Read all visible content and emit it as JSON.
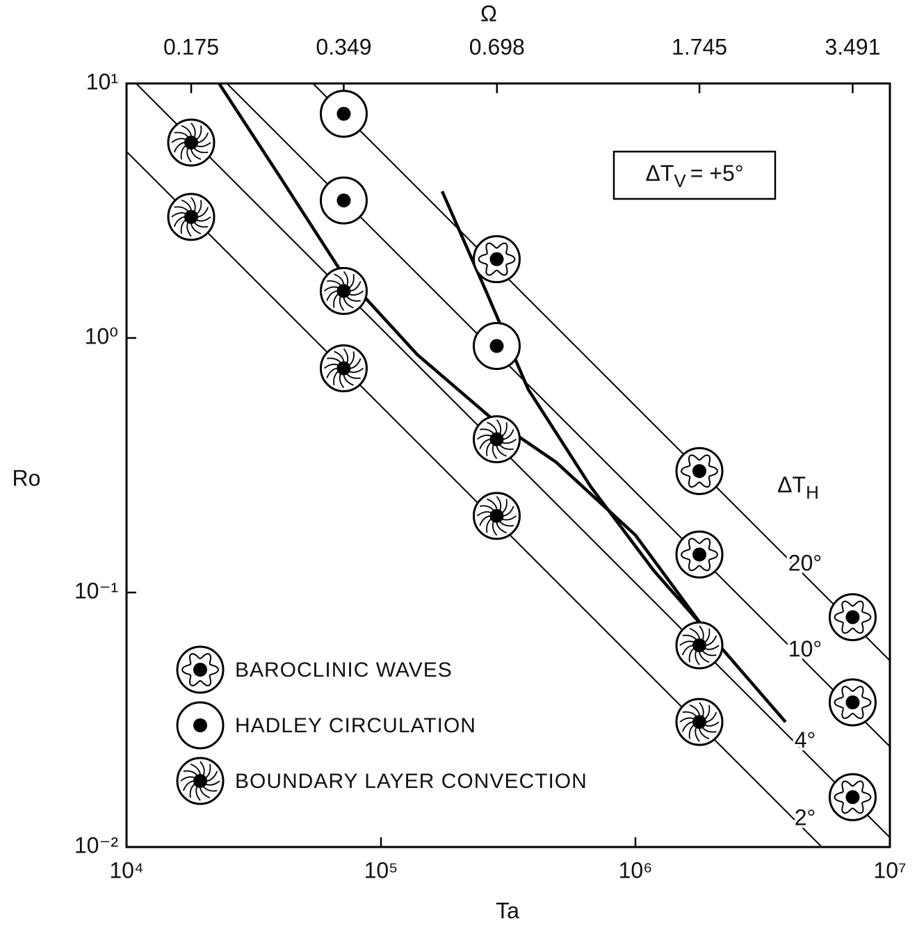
{
  "chart_data": {
    "type": "scatter",
    "x_label": "Ta",
    "y_label": "Ro",
    "x2_label": "Ω",
    "xscale": "log",
    "yscale": "log",
    "x2scale": "log",
    "xlim": [
      10000,
      10000000
    ],
    "ylim": [
      0.01,
      10
    ],
    "x2lim": [
      0.1306,
      4.131
    ],
    "xticks": [
      {
        "value": 10000,
        "label": "10⁴"
      },
      {
        "value": 100000,
        "label": "10⁵"
      },
      {
        "value": 1000000,
        "label": "10⁶"
      },
      {
        "value": 10000000,
        "label": "10⁷"
      }
    ],
    "yticks": [
      {
        "value": 0.01,
        "label": "10⁻²"
      },
      {
        "value": 0.1,
        "label": "10⁻¹"
      },
      {
        "value": 1,
        "label": "10⁰"
      },
      {
        "value": 10,
        "label": "10¹"
      }
    ],
    "x2ticks": [
      0.175,
      0.349,
      0.698,
      1.745,
      3.491
    ],
    "annotation": {
      "base": "ΔT",
      "subscript": "V",
      "text": "= +5°"
    },
    "lines_title": {
      "base": "ΔT",
      "subscript": "H"
    },
    "series": [
      {
        "name": "BAROCLINIC WAVES",
        "marker": "wave",
        "color": "#000000",
        "x": [
          285000,
          1784000,
          1784000,
          7140000,
          7140000,
          7140000
        ],
        "values": [
          2.04,
          0.3,
          0.141,
          0.08,
          0.037,
          0.0157
        ]
      },
      {
        "name": "HADLEY CIRCULATION",
        "marker": "dot",
        "color": "#000000",
        "x": [
          71400,
          71400,
          285000
        ],
        "values": [
          7.6,
          3.47,
          0.93
        ]
      },
      {
        "name": "BOUNDARY LAYER CONVECTION",
        "marker": "swirl",
        "color": "#000000",
        "x": [
          17950,
          17950,
          71400,
          71400,
          285000,
          285000,
          1784000,
          1784000
        ],
        "values": [
          5.86,
          2.99,
          1.53,
          0.76,
          0.4,
          0.2,
          0.062,
          0.031
        ]
      }
    ],
    "lines": [
      {
        "name": "20°",
        "color": "#000000",
        "x": [
          54000,
          10000000
        ],
        "values": [
          10,
          0.054
        ]
      },
      {
        "name": "10°",
        "color": "#000000",
        "x": [
          24800,
          10000000
        ],
        "values": [
          10,
          0.0248
        ]
      },
      {
        "name": "4°",
        "color": "#000000",
        "x": [
          10900,
          10000000
        ],
        "values": [
          10,
          0.0109
        ]
      },
      {
        "name": "2°",
        "color": "#000000",
        "x": [
          10000,
          5400000
        ],
        "values": [
          5.4,
          0.01
        ]
      }
    ],
    "boundaries": [
      {
        "color": "#000000",
        "x": [
          23100,
          39400,
          69500,
          139000,
          268000,
          488000,
          1000000,
          1830000,
          3890000
        ],
        "values": [
          10,
          4.41,
          1.83,
          0.86,
          0.49,
          0.325,
          0.168,
          0.074,
          0.031
        ]
      },
      {
        "color": "#000000",
        "x": [
          174000,
          260000,
          379000,
          668000,
          1180000,
          1830000
        ],
        "values": [
          3.77,
          1.51,
          0.628,
          0.26,
          0.122,
          0.074
        ]
      }
    ]
  }
}
